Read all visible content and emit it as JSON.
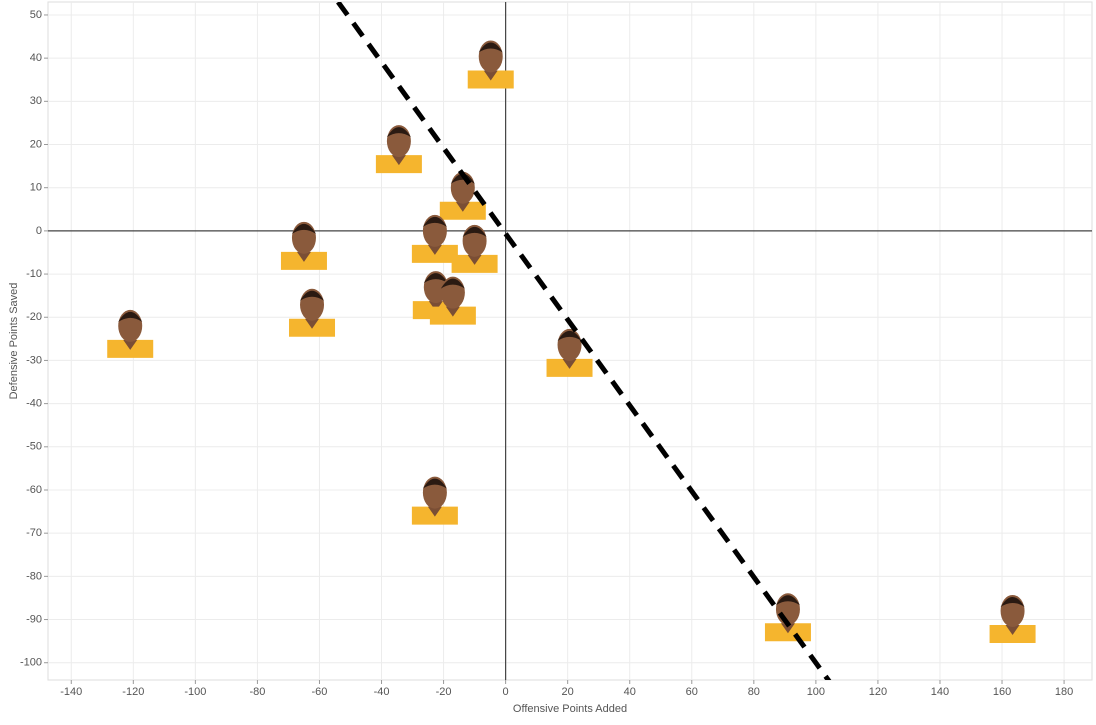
{
  "chart_data": {
    "type": "scatter",
    "x_label": "Offensive Points Added",
    "y_label": "Defensive Points Saved",
    "x": [
      -4.8,
      -34.4,
      -13.8,
      -65,
      -22.8,
      -10,
      -62.4,
      -22.5,
      -17,
      -121,
      20.6,
      -22.8,
      91,
      163.4
    ],
    "values": [
      39,
      19.4,
      8.6,
      -3,
      -1.4,
      -3.7,
      -18.5,
      -14.4,
      -15.7,
      -23.4,
      -27.8,
      -62,
      -89,
      -89.4
    ],
    "color": "#f5b52e",
    "xlim": [
      -147.5,
      189
    ],
    "ylim": [
      -104,
      53
    ],
    "xticks": [
      -140,
      -120,
      -100,
      -80,
      -60,
      -40,
      -20,
      0,
      20,
      40,
      60,
      80,
      100,
      120,
      140,
      160,
      180
    ],
    "yticks": [
      -100,
      -90,
      -80,
      -70,
      -60,
      -50,
      -40,
      -30,
      -20,
      -10,
      0,
      10,
      20,
      30,
      40,
      50
    ],
    "grid": true,
    "trend_line": {
      "x": [
        -54,
        105
      ],
      "y": [
        53,
        -105
      ]
    }
  }
}
